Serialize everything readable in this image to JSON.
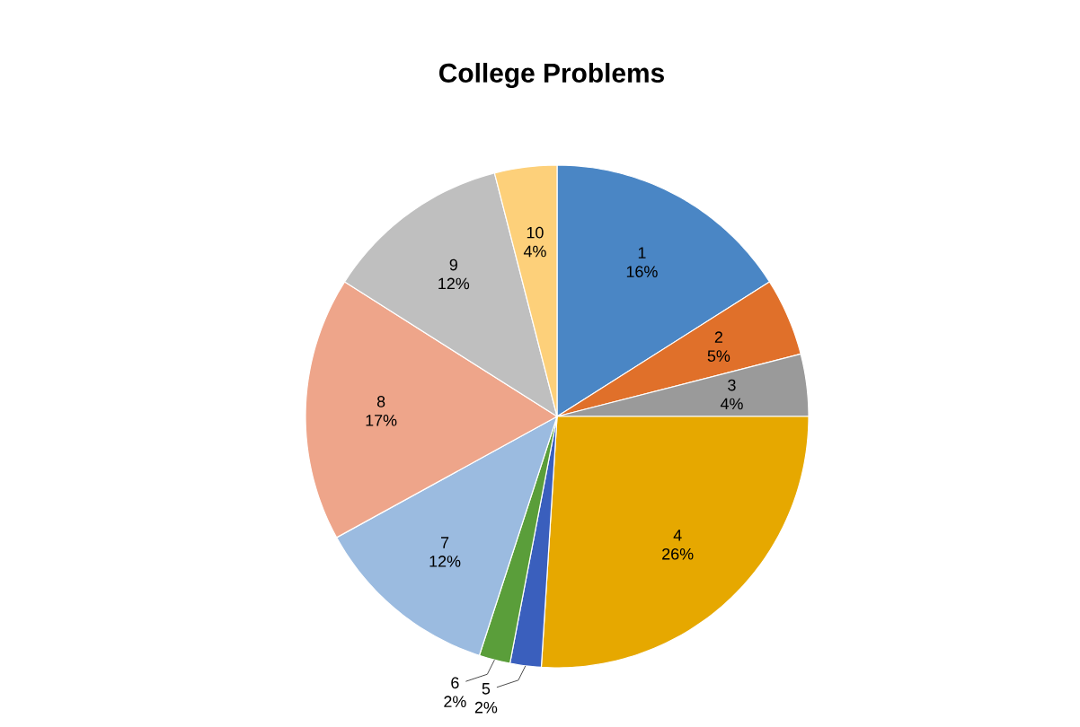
{
  "chart_data": {
    "type": "pie",
    "title": "College Problems",
    "categories": [
      "1",
      "2",
      "3",
      "4",
      "5",
      "6",
      "7",
      "8",
      "9",
      "10"
    ],
    "values": [
      16,
      5,
      4,
      26,
      2,
      2,
      12,
      17,
      12,
      4
    ],
    "value_labels": [
      "16%",
      "5%",
      "4%",
      "26%",
      "2%",
      "2%",
      "12%",
      "17%",
      "12%",
      "4%"
    ],
    "colors": [
      "#4a86c5",
      "#e0702a",
      "#9a9a9a",
      "#e6a800",
      "#3a5fbd",
      "#5a9e3a",
      "#9bbbe0",
      "#eea58a",
      "#bfbfbf",
      "#fdd07a"
    ]
  }
}
